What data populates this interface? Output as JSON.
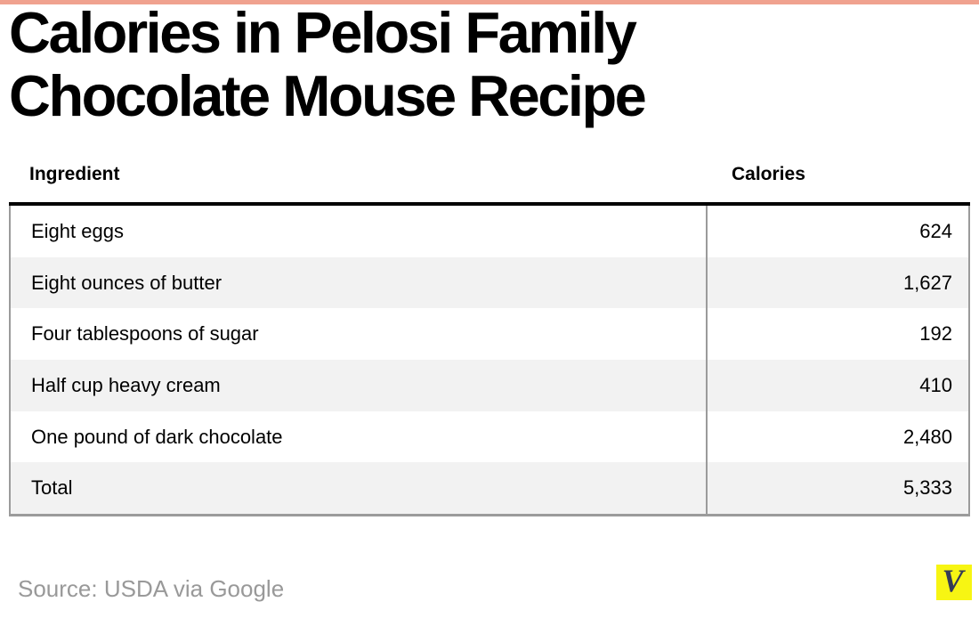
{
  "title": {
    "line1": "Calories in Pelosi Family",
    "line2": "Chocolate Mouse Recipe"
  },
  "table": {
    "columns": [
      "Ingredient",
      "Calories"
    ],
    "rows": [
      {
        "ingredient": "Eight eggs",
        "calories": "624"
      },
      {
        "ingredient": "Eight ounces of butter",
        "calories": "1,627"
      },
      {
        "ingredient": "Four tablespoons of sugar",
        "calories": "192"
      },
      {
        "ingredient": "Half cup heavy cream",
        "calories": "410"
      },
      {
        "ingredient": "One pound of dark chocolate",
        "calories": "2,480"
      },
      {
        "ingredient": "Total",
        "calories": "5,333"
      }
    ]
  },
  "footer": {
    "source": "Source: USDA via Google",
    "logo_letter": "V"
  },
  "colors": {
    "accent_bar": "#f0a28f",
    "headline_text": "#000000",
    "header_rule": "#000000",
    "table_border": "#9b9b9b",
    "row_alt_background": "#f2f2f2",
    "source_text": "#999999",
    "logo_background": "#f7f513",
    "logo_letter": "#343a56"
  },
  "chart_data": {
    "type": "table",
    "title": "Calories in Pelosi Family Chocolate Mouse Recipe",
    "columns": [
      "Ingredient",
      "Calories"
    ],
    "rows": [
      [
        "Eight eggs",
        624
      ],
      [
        "Eight ounces of butter",
        1627
      ],
      [
        "Four tablespoons of sugar",
        192
      ],
      [
        "Half cup heavy cream",
        410
      ],
      [
        "One pound of dark chocolate",
        2480
      ],
      [
        "Total",
        5333
      ]
    ],
    "source": "Source: USDA via Google"
  }
}
